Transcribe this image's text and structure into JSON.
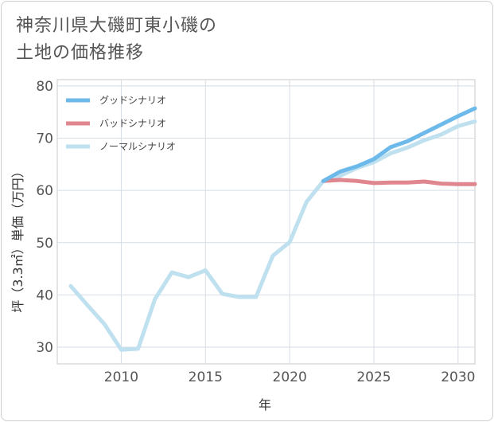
{
  "title_line1": "神奈川県大磯町東小磯の",
  "title_line2": "土地の価格推移",
  "chart_data": {
    "type": "line",
    "xlabel": "年",
    "ylabel": "坪（3.3㎡）単価（万円）",
    "xlim": [
      2006.2,
      2031
    ],
    "ylim": [
      26.8,
      81.2
    ],
    "x_ticks": [
      2010,
      2015,
      2020,
      2025,
      2030
    ],
    "y_ticks": [
      30,
      40,
      50,
      60,
      70,
      80
    ],
    "grid": true,
    "legend_position": "top-left",
    "series": [
      {
        "name": "グッドシナリオ",
        "color": "#6db9ea",
        "x": [
          2022,
          2023,
          2024,
          2025,
          2026,
          2027,
          2028,
          2029,
          2030,
          2031
        ],
        "y": [
          61.8,
          63.6,
          64.6,
          66.0,
          68.3,
          69.4,
          71.0,
          72.6,
          74.2,
          75.7
        ]
      },
      {
        "name": "バッドシナリオ",
        "color": "#e0868f",
        "x": [
          2022,
          2023,
          2024,
          2025,
          2026,
          2027,
          2028,
          2029,
          2030,
          2031
        ],
        "y": [
          61.8,
          62.0,
          61.8,
          61.4,
          61.5,
          61.5,
          61.7,
          61.3,
          61.2,
          61.2
        ]
      },
      {
        "name": "ノーマルシナリオ",
        "color": "#bfe0ef",
        "x": [
          2007,
          2008,
          2009,
          2010,
          2011,
          2012,
          2013,
          2014,
          2015,
          2016,
          2017,
          2018,
          2019,
          2020,
          2021,
          2022,
          2023,
          2024,
          2025,
          2026,
          2027,
          2028,
          2029,
          2030,
          2031
        ],
        "y": [
          41.7,
          38.0,
          34.4,
          29.5,
          29.7,
          39.2,
          44.3,
          43.4,
          44.7,
          40.2,
          39.6,
          39.6,
          47.5,
          50.1,
          57.8,
          61.8,
          62.8,
          64.3,
          65.4,
          67.1,
          68.2,
          69.6,
          70.7,
          72.3,
          73.2
        ]
      }
    ]
  }
}
